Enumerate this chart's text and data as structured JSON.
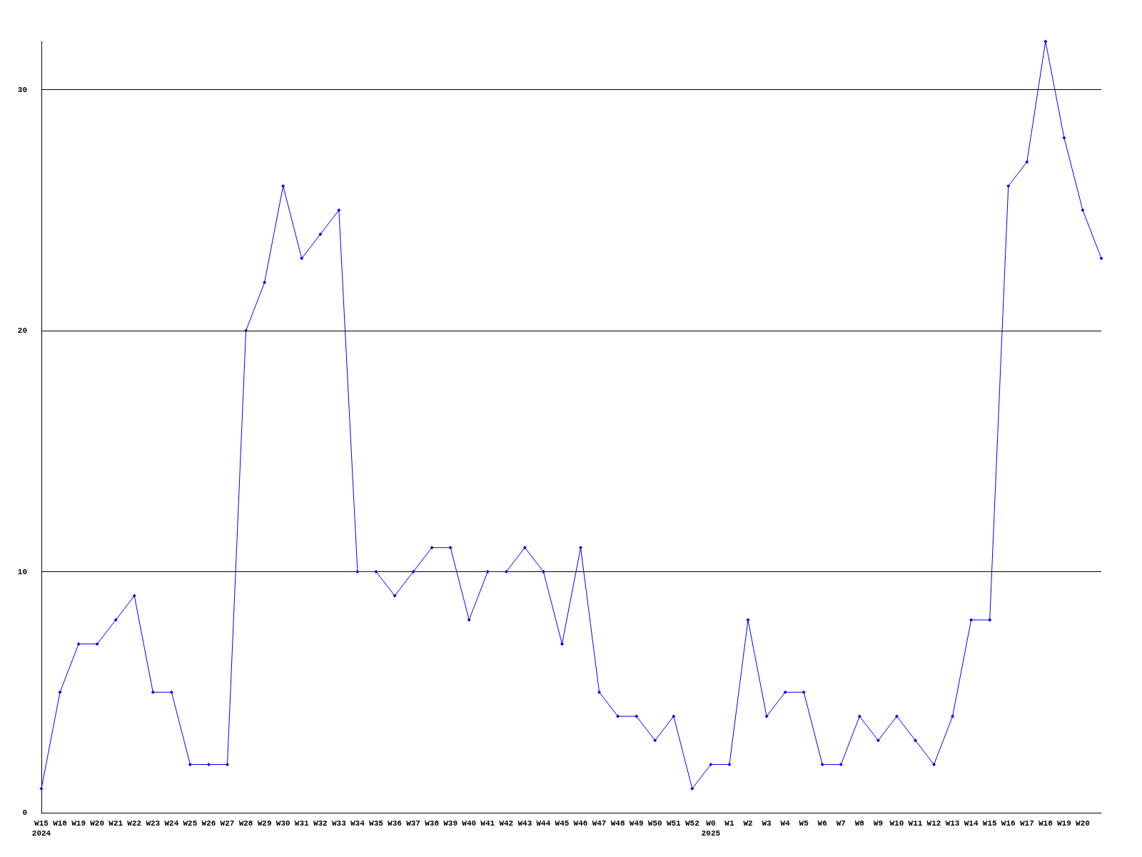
{
  "chart_data": {
    "type": "line",
    "categories": [
      "W15\n2024",
      "W18",
      "W19",
      "W20",
      "W21",
      "W22",
      "W23",
      "W24",
      "W25",
      "W26",
      "W27",
      "W28",
      "W29",
      "W30",
      "W31",
      "W32",
      "W33",
      "W34",
      "W35",
      "W36",
      "W37",
      "W38",
      "W39",
      "W40",
      "W41",
      "W42",
      "W43",
      "W44",
      "W45",
      "W46",
      "W47",
      "W48",
      "W49",
      "W50",
      "W51",
      "W52",
      "W0\n2025",
      "W1",
      "W2",
      "W3",
      "W4",
      "W5",
      "W6",
      "W7",
      "W8",
      "W9",
      "W10",
      "W11",
      "W12",
      "W13",
      "W14",
      "W15",
      "W16",
      "W17",
      "W18",
      "W19",
      "W20",
      null
    ],
    "series": [
      {
        "color": "#0000ff",
        "values": [
          1,
          5,
          7,
          7,
          8,
          9,
          5,
          5,
          2,
          2,
          2,
          20,
          22,
          26,
          23,
          24,
          25,
          10,
          10,
          9,
          10,
          11,
          11,
          8,
          10,
          10,
          11,
          10,
          7,
          11,
          5,
          4,
          4,
          3,
          4,
          1,
          2,
          2,
          8,
          4,
          5,
          5,
          2,
          2,
          4,
          3,
          4,
          3,
          2,
          4,
          8,
          8,
          26,
          27,
          32,
          28,
          25,
          23
        ]
      }
    ],
    "ylim": [
      0,
      32
    ],
    "yticks": [
      0,
      10,
      20,
      30
    ],
    "grid": "y",
    "marker": "diamond",
    "line_style": "solid"
  }
}
